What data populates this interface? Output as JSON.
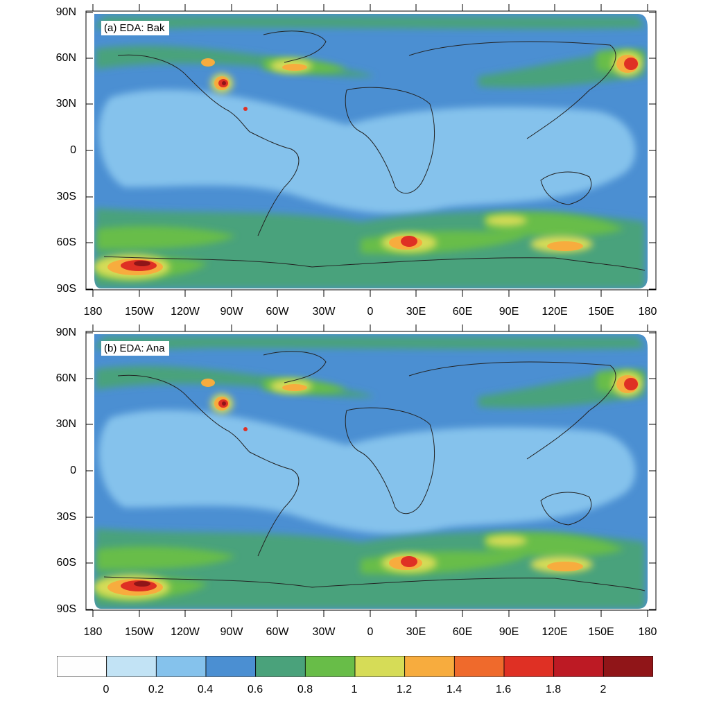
{
  "panels": [
    {
      "id": "bak",
      "title": "(a) EDA: Bak"
    },
    {
      "id": "ana",
      "title": "(b) EDA: Ana"
    }
  ],
  "axes": {
    "lat_labels": [
      "90N",
      "60N",
      "30N",
      "0",
      "30S",
      "60S",
      "90S"
    ],
    "lon_labels": [
      "180",
      "150W",
      "120W",
      "90W",
      "60W",
      "30W",
      "0",
      "30E",
      "60E",
      "90E",
      "120E",
      "150E",
      "180"
    ]
  },
  "colorbar": {
    "colors": [
      "#fefefe",
      "#c2e3f5",
      "#85c2ec",
      "#4b8fd2",
      "#4aa27b",
      "#68bd48",
      "#d6dc57",
      "#f7ac3e",
      "#ef6a2c",
      "#df3024",
      "#bd1a24",
      "#901518"
    ],
    "labels": [
      "0",
      "0.2",
      "0.4",
      "0.6",
      "0.8",
      "1",
      "1.2",
      "1.4",
      "1.6",
      "1.8",
      "2"
    ]
  }
}
